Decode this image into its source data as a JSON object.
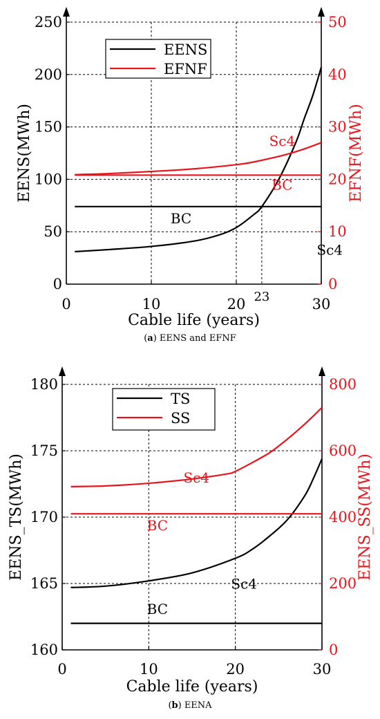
{
  "colors": {
    "black": "#000000",
    "red": "#e8141b",
    "grid": "#000000"
  },
  "chart_data": [
    {
      "type": "line",
      "caption": {
        "prefix": "(",
        "letter": "a",
        "rest": ") EENS and EFNF"
      },
      "xlabel": "Cable life (years)",
      "ylabel_left": "EENS(MWh)",
      "ylabel_right": "EFNF(MWh)",
      "xlim": [
        0,
        30
      ],
      "ylim_left": [
        0,
        250
      ],
      "ylim_right": [
        0,
        50
      ],
      "x_ticks": [
        "0",
        "10",
        "20",
        "30"
      ],
      "x_tick_values": [
        0,
        10,
        20,
        30
      ],
      "y_ticks_left": [
        "0",
        "50",
        "100",
        "150",
        "200",
        "250"
      ],
      "y_tick_values_left": [
        0,
        50,
        100,
        150,
        200,
        250
      ],
      "y_ticks_right": [
        "0",
        "10",
        "20",
        "30",
        "40",
        "50"
      ],
      "y_tick_values_right": [
        0,
        10,
        20,
        30,
        40,
        50
      ],
      "grid": true,
      "legend": {
        "placement": "top-left",
        "entries": [
          {
            "label": "EENS",
            "color": "#000000"
          },
          {
            "label": "EFNF",
            "color": "#e8141b"
          }
        ]
      },
      "series": [
        {
          "name": "EENS",
          "case": "BC",
          "axis": "left",
          "color": "#000000",
          "x": [
            1,
            30
          ],
          "y": [
            74,
            74
          ]
        },
        {
          "name": "EENS",
          "case": "Sc4",
          "axis": "left",
          "color": "#000000",
          "x": [
            1,
            5,
            10,
            15,
            18,
            20,
            22,
            23,
            25,
            27,
            28,
            29,
            30
          ],
          "y": [
            31,
            33,
            36,
            41,
            47,
            54,
            66,
            74,
            100,
            135,
            158,
            180,
            207
          ]
        },
        {
          "name": "EFNF",
          "case": "BC",
          "axis": "right",
          "color": "#e8141b",
          "x": [
            1,
            30
          ],
          "y": [
            20.8,
            20.8
          ]
        },
        {
          "name": "EFNF",
          "case": "Sc4",
          "axis": "right",
          "color": "#e8141b",
          "x": [
            1,
            5,
            10,
            15,
            20,
            22,
            24,
            26,
            28,
            30
          ],
          "y": [
            20.9,
            21.1,
            21.5,
            22.0,
            22.8,
            23.3,
            24.0,
            24.8,
            25.8,
            27.0
          ]
        }
      ],
      "annotations": [
        {
          "text": "Sc4",
          "x": 25.4,
          "y": 132,
          "axis": "left",
          "color": "#e8141b",
          "size": 20
        },
        {
          "text": "BC",
          "x": 25.4,
          "y": 90,
          "axis": "left",
          "color": "#e8141b",
          "size": 20
        },
        {
          "text": "BC",
          "x": 13.5,
          "y": 58,
          "axis": "left",
          "color": "#000000",
          "size": 20
        },
        {
          "text": "Sc4",
          "x": 31.0,
          "y": 28,
          "axis": "left",
          "color": "#000000",
          "size": 20
        },
        {
          "text": "23",
          "x": 23.0,
          "y": -10,
          "axis": "left",
          "color": "#000000",
          "size": 18
        }
      ],
      "marker": {
        "x": 23,
        "y": 74
      }
    },
    {
      "type": "line",
      "caption": {
        "prefix": "(",
        "letter": "b",
        "rest": ") EENA"
      },
      "xlabel": "Cable life (years)",
      "ylabel_left": "EENS_TS(MWh)",
      "ylabel_right": "EENS_SS(MWh)",
      "xlim": [
        0,
        30
      ],
      "ylim_left": [
        160,
        180
      ],
      "ylim_right": [
        0,
        800
      ],
      "x_ticks": [
        "0",
        "10",
        "20",
        "30"
      ],
      "x_tick_values": [
        0,
        10,
        20,
        30
      ],
      "y_ticks_left": [
        "160",
        "165",
        "170",
        "175",
        "180"
      ],
      "y_tick_values_left": [
        160,
        165,
        170,
        175,
        180
      ],
      "y_ticks_right": [
        "0",
        "200",
        "400",
        "600",
        "800"
      ],
      "y_tick_values_right": [
        0,
        200,
        400,
        600,
        800
      ],
      "grid": true,
      "legend": {
        "placement": "top-left",
        "entries": [
          {
            "label": "TS",
            "color": "#000000"
          },
          {
            "label": "SS",
            "color": "#e8141b"
          }
        ]
      },
      "series": [
        {
          "name": "TS",
          "case": "BC",
          "axis": "left",
          "color": "#000000",
          "x": [
            1,
            30
          ],
          "y": [
            162.0,
            162.0
          ]
        },
        {
          "name": "TS",
          "case": "Sc4",
          "axis": "left",
          "color": "#000000",
          "x": [
            1,
            5,
            10,
            15,
            20,
            22,
            24,
            26,
            28,
            29,
            30
          ],
          "y": [
            164.7,
            164.8,
            165.2,
            165.8,
            166.9,
            167.6,
            168.6,
            169.8,
            171.6,
            172.9,
            174.4
          ]
        },
        {
          "name": "SS",
          "case": "BC",
          "axis": "right",
          "color": "#e8141b",
          "x": [
            1,
            30
          ],
          "y": [
            410,
            410
          ]
        },
        {
          "name": "SS",
          "case": "Sc4",
          "axis": "right",
          "color": "#e8141b",
          "x": [
            1,
            5,
            10,
            15,
            19,
            20,
            22,
            24,
            26,
            28,
            30
          ],
          "y": [
            492,
            494,
            502,
            515,
            530,
            538,
            565,
            595,
            635,
            680,
            730
          ]
        }
      ],
      "annotations": [
        {
          "text": "Sc4",
          "x": 15.5,
          "y": 172.6,
          "axis": "left",
          "color": "#e8141b",
          "size": 20
        },
        {
          "text": "BC",
          "x": 11.0,
          "y": 169.0,
          "axis": "left",
          "color": "#e8141b",
          "size": 20
        },
        {
          "text": "Sc4",
          "x": 21.0,
          "y": 164.6,
          "axis": "left",
          "color": "#000000",
          "size": 20
        },
        {
          "text": "BC",
          "x": 11.0,
          "y": 162.7,
          "axis": "left",
          "color": "#000000",
          "size": 20
        }
      ]
    }
  ]
}
